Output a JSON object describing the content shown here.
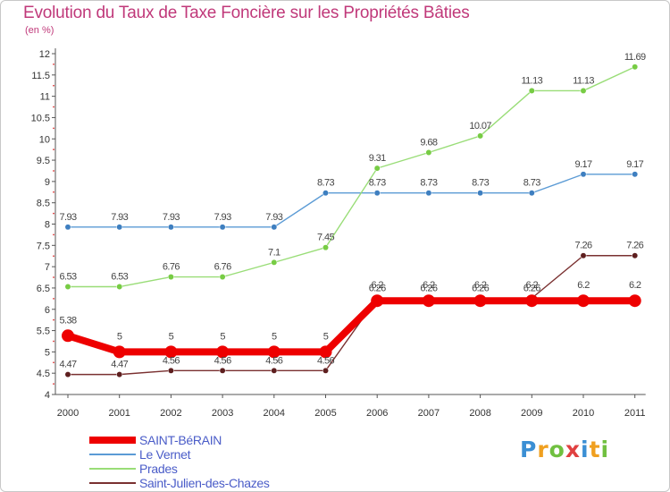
{
  "chart_data": {
    "type": "line",
    "title": "Evolution du Taux de Taxe Foncière sur les Propriétés Bâties",
    "subtitle": "(en %)",
    "xlabel": "",
    "ylabel": "",
    "categories": [
      "2000",
      "2001",
      "2002",
      "2003",
      "2004",
      "2005",
      "2006",
      "2007",
      "2008",
      "2009",
      "2010",
      "2011"
    ],
    "ylim": [
      4,
      12
    ],
    "yticks": [
      "4",
      "4.5",
      "5",
      "5.5",
      "6",
      "6.5",
      "7",
      "7.5",
      "8",
      "8.5",
      "9",
      "9.5",
      "10",
      "10.5",
      "11",
      "11.5",
      "12"
    ],
    "grid": false,
    "legend_position": "bottom-left",
    "series": [
      {
        "name": "Le Vernet",
        "color": "#5b9bd5",
        "point_color": "#3e7fc0",
        "values": [
          7.93,
          7.93,
          7.93,
          7.93,
          7.93,
          8.73,
          8.73,
          8.73,
          8.73,
          8.73,
          9.17,
          9.17
        ],
        "labels": [
          "7.93",
          "7.93",
          "7.93",
          "7.93",
          "7.93",
          "8.73",
          "8.73",
          "8.73",
          "8.73",
          "8.73",
          "9.17",
          "9.17"
        ]
      },
      {
        "name": "Prades",
        "color": "#99dd77",
        "point_color": "#77cc44",
        "values": [
          6.53,
          6.53,
          6.76,
          6.76,
          7.1,
          7.45,
          9.31,
          9.68,
          10.07,
          11.13,
          11.13,
          11.69
        ],
        "labels": [
          "6.53",
          "6.53",
          "6.76",
          "6.76",
          "7.1",
          "7.45",
          "9.31",
          "9.68",
          "10.07",
          "11.13",
          "11.13",
          "11.69"
        ]
      },
      {
        "name": "Saint-Julien-des-Chazes",
        "color": "#7a3030",
        "point_color": "#5e1f1f",
        "values": [
          4.47,
          4.47,
          4.56,
          4.56,
          4.56,
          4.56,
          6.26,
          6.26,
          6.26,
          6.26,
          7.26,
          7.26
        ],
        "labels": [
          "4.47",
          "4.47",
          "4.56",
          "4.56",
          "4.56",
          "4.56",
          "6.26",
          "6.26",
          "6.26",
          "6.26",
          "7.26",
          "7.26"
        ]
      },
      {
        "name": "SAINT-BéRAIN",
        "color": "#ee0000",
        "point_color": "#ee0000",
        "values": [
          5.38,
          5,
          5,
          5,
          5,
          5,
          6.2,
          6.2,
          6.2,
          6.2,
          6.2,
          6.2
        ],
        "labels": [
          "5.38",
          "5",
          "5",
          "5",
          "5",
          "5",
          "6.2",
          "6.2",
          "6.2",
          "6.2",
          "6.2",
          "6.2"
        ]
      }
    ],
    "legend": [
      "SAINT-BéRAIN",
      "Le Vernet",
      "Prades",
      "Saint-Julien-des-Chazes"
    ]
  },
  "logo": {
    "letters": [
      "P",
      "r",
      "o",
      "x",
      "i",
      "t",
      "i"
    ],
    "colors": [
      "#3b8fd4",
      "#f0a020",
      "#70c040",
      "#e04040",
      "#3b8fd4",
      "#f0a020",
      "#70c040"
    ]
  }
}
